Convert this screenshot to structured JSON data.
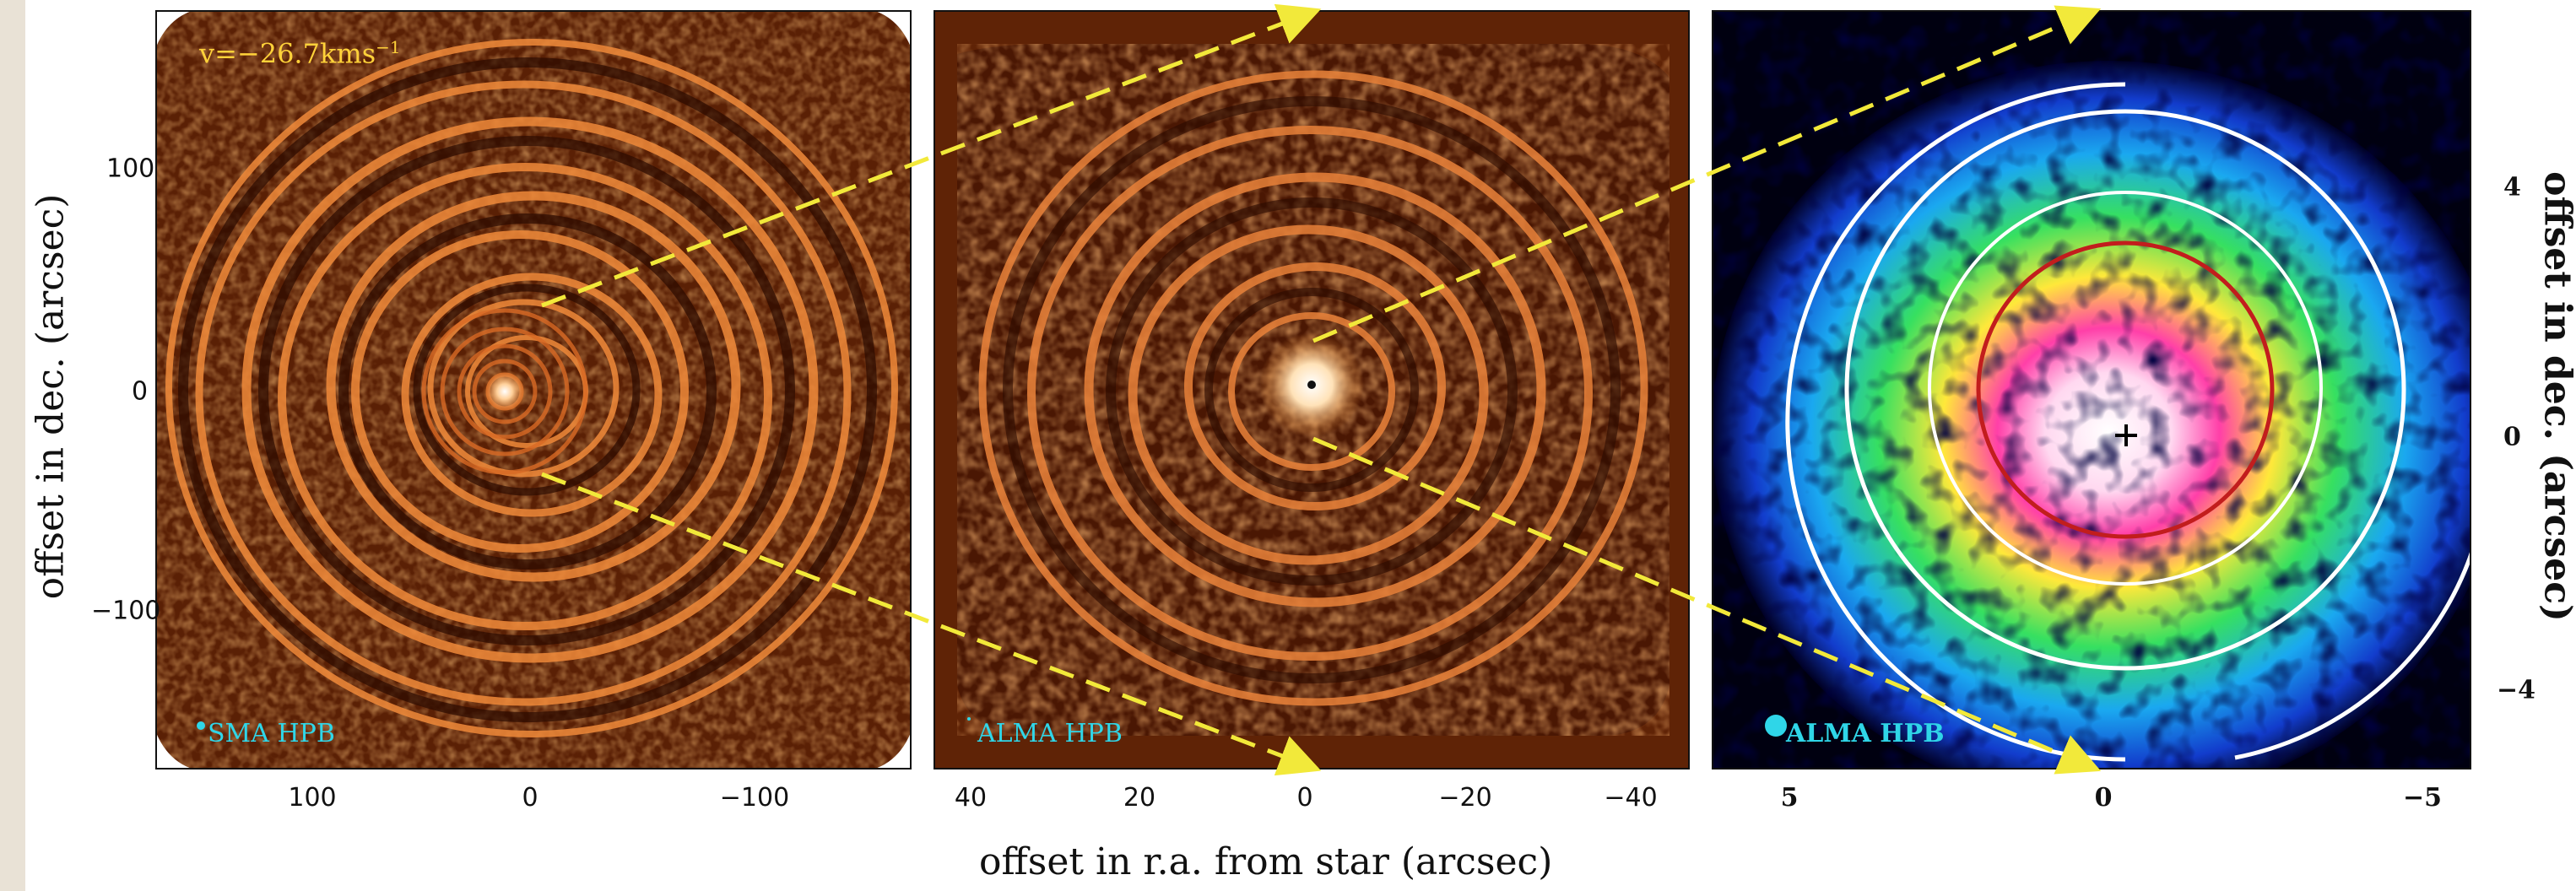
{
  "velocity_label": {
    "prefix": "v=−26.7kms",
    "superscript": "−1"
  },
  "panels": [
    {
      "beam_label": "SMA HPB",
      "x_ticks": [
        "100",
        "0",
        "−100"
      ],
      "y_ticks": [
        "100",
        "0",
        "−100"
      ]
    },
    {
      "beam_label": "ALMA HPB",
      "x_ticks": [
        "40",
        "20",
        "0",
        "−20",
        "−40"
      ]
    },
    {
      "beam_label": "ALMA HPB",
      "x_ticks": [
        "5",
        "0",
        "−5"
      ],
      "y_ticks": [
        "4",
        "0",
        "−4"
      ]
    }
  ],
  "axes": {
    "x_label": "offset in r.a. from star (arcsec)",
    "y_label_left": "offset in dec. (arcsec)",
    "y_label_right": "offset in dec. (arcsec)"
  },
  "colors": {
    "overlay_arrows": "#f2e93a",
    "beam_marker": "#2fd6e8",
    "ring_white": "#ffffff",
    "ring_red": "#c21d1d",
    "map_background": "#5a2005"
  }
}
